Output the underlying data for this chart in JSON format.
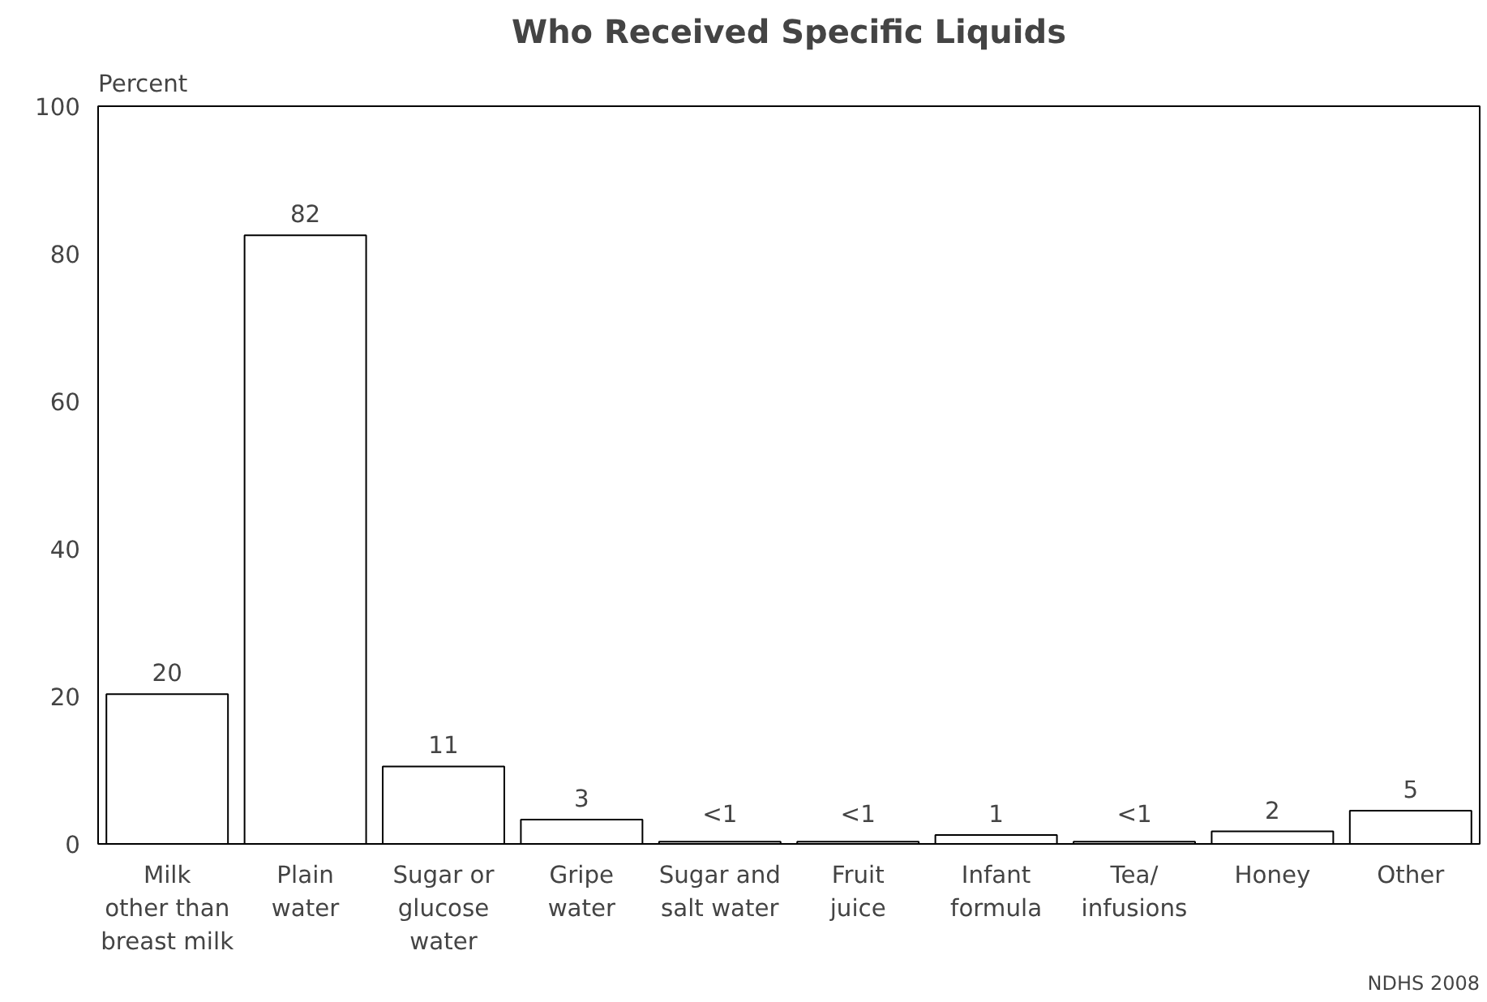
{
  "chart_data": {
    "type": "bar",
    "title": "Who Received Specific Liquids",
    "ylabel": "Percent",
    "categories": [
      "Milk\nother than\nbreast milk",
      "Plain\nwater",
      "Sugar or\nglucose\nwater",
      "Gripe\nwater",
      "Sugar and\nsalt water",
      "Fruit\njuice",
      "Infant\nformula",
      "Tea/\ninfusions",
      "Honey",
      "Other"
    ],
    "values": [
      20.3,
      82.5,
      10.5,
      3.3,
      0.3,
      0.3,
      1.2,
      0.3,
      1.7,
      4.5
    ],
    "value_labels": [
      "20",
      "82",
      "11",
      "3",
      "<1",
      "<1",
      "1",
      "<1",
      "2",
      "5"
    ],
    "color": "#ffffff",
    "ylim": [
      0,
      100
    ],
    "yticks": [
      0,
      20,
      40,
      60,
      80,
      100
    ],
    "grid": false,
    "annotations": [
      "NDHS 2008"
    ]
  }
}
